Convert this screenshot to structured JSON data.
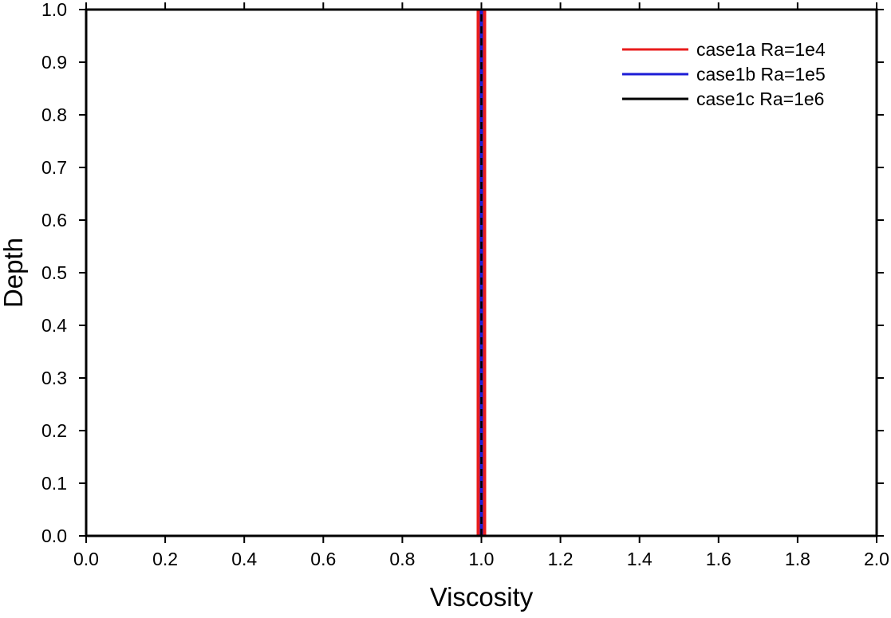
{
  "chart_data": {
    "type": "line",
    "title": "",
    "xlabel": "Viscosity",
    "ylabel": "Depth",
    "xlim": [
      0.0,
      2.0
    ],
    "ylim": [
      0.0,
      1.0
    ],
    "x_ticks": [
      "0.0",
      "0.2",
      "0.4",
      "0.6",
      "0.8",
      "1.0",
      "1.2",
      "1.4",
      "1.6",
      "1.8",
      "2.0"
    ],
    "y_ticks": [
      "0.0",
      "0.1",
      "0.2",
      "0.3",
      "0.4",
      "0.5",
      "0.6",
      "0.7",
      "0.8",
      "0.9",
      "1.0"
    ],
    "grid": false,
    "legend_position": "top-right",
    "series": [
      {
        "name": "case1a Ra=1e4",
        "color": "#e81c1c",
        "style": "solid",
        "x": [
          1.0,
          1.0
        ],
        "y": [
          0.0,
          1.0
        ]
      },
      {
        "name": "case1b Ra=1e5",
        "color": "#1c1cd6",
        "style": "solid",
        "x": [
          1.0,
          1.0
        ],
        "y": [
          0.0,
          1.0
        ]
      },
      {
        "name": "case1c Ra=1e6",
        "color": "#000000",
        "style": "dashed",
        "x": [
          1.0,
          1.0
        ],
        "y": [
          0.0,
          1.0
        ]
      }
    ]
  }
}
